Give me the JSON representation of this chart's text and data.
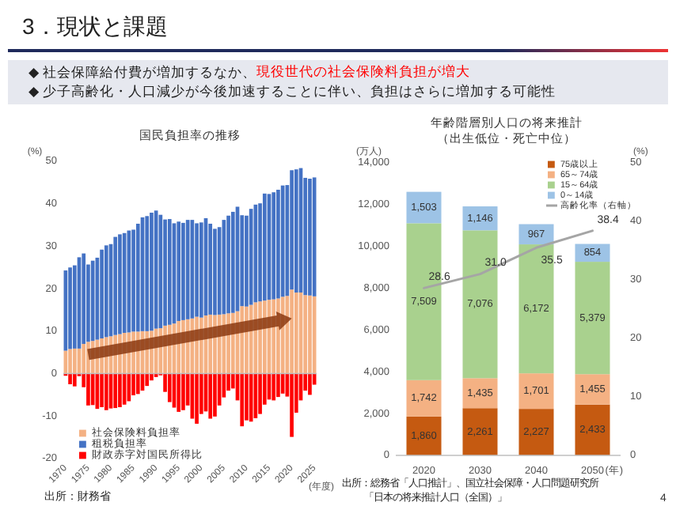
{
  "chart_data": [
    {
      "type": "bar",
      "stacked": true,
      "title": "国民負担率の推移",
      "xlabel": "(年度)",
      "ylabel": "(%)",
      "categories": [
        "1970",
        null,
        null,
        null,
        null,
        "1975",
        null,
        null,
        null,
        null,
        "1980",
        null,
        null,
        null,
        null,
        "1985",
        null,
        null,
        null,
        null,
        "1990",
        null,
        null,
        null,
        null,
        "1995",
        null,
        null,
        null,
        null,
        "2000",
        null,
        null,
        null,
        null,
        "2005",
        null,
        null,
        null,
        null,
        "2010",
        null,
        null,
        null,
        null,
        "2015",
        null,
        null,
        null,
        null,
        "2020",
        null,
        null,
        null,
        null,
        "2025"
      ],
      "series": [
        {
          "name": "社会保険料負担率",
          "color": "#f4b183",
          "values": [
            5.4,
            5.8,
            5.9,
            5.9,
            7.0,
            7.5,
            7.7,
            8.0,
            8.3,
            8.6,
            8.8,
            9.1,
            9.3,
            9.6,
            9.7,
            9.9,
            9.9,
            10.0,
            10.0,
            10.1,
            10.6,
            10.7,
            11.3,
            11.5,
            11.8,
            12.4,
            12.6,
            12.8,
            13.0,
            13.4,
            13.2,
            13.7,
            13.9,
            13.8,
            13.9,
            14.0,
            14.2,
            14.3,
            14.7,
            15.9,
            15.8,
            16.2,
            16.8,
            17.0,
            17.2,
            17.4,
            17.5,
            17.7,
            18.1,
            18.3,
            19.8,
            19.1,
            19.1,
            18.5,
            18.4,
            18.2
          ]
        },
        {
          "name": "租税負担率",
          "color": "#4472c4",
          "values": [
            18.9,
            19.2,
            19.6,
            21.5,
            21.3,
            18.2,
            18.9,
            19.3,
            20.9,
            21.6,
            21.7,
            23.1,
            23.5,
            23.5,
            24.0,
            24.0,
            25.4,
            26.8,
            27.1,
            27.8,
            27.8,
            26.7,
            25.0,
            24.9,
            23.6,
            23.4,
            22.9,
            23.4,
            23.2,
            22.0,
            22.4,
            22.9,
            21.4,
            20.3,
            20.6,
            22.2,
            23.0,
            23.8,
            24.6,
            21.4,
            21.4,
            22.6,
            23.0,
            23.1,
            25.2,
            24.9,
            25.2,
            25.6,
            26.2,
            26.1,
            28.1,
            29.0,
            29.3,
            27.6,
            27.5,
            28.0
          ]
        },
        {
          "name": "財政赤字対国民所得比",
          "color": "#ff0000",
          "values": [
            -0.5,
            -2.5,
            -3.0,
            -0.6,
            -3.2,
            -7.5,
            -7.4,
            -8.3,
            -7.9,
            -8.6,
            -8.2,
            -8.1,
            -7.9,
            -7.3,
            -6.5,
            -5.1,
            -4.8,
            -4.0,
            -2.9,
            -1.6,
            -0.8,
            -0.4,
            -4.3,
            -6.7,
            -8.0,
            -9.0,
            -8.6,
            -7.5,
            -10.6,
            -11.8,
            -9.5,
            -8.9,
            -10.6,
            -10.1,
            -7.5,
            -5.6,
            -4.0,
            -3.5,
            -6.3,
            -12.4,
            -11.0,
            -11.3,
            -10.5,
            -9.5,
            -7.3,
            -6.1,
            -6.3,
            -5.5,
            -4.7,
            -5.4,
            -14.9,
            -9.2,
            -6.3,
            -4.0,
            -5.0,
            -2.6
          ]
        }
      ],
      "ylim": [
        -20,
        50
      ],
      "yticks": [
        -20,
        -10,
        0,
        10,
        20,
        30,
        40,
        50
      ],
      "legend": "bottom left",
      "annotations": [
        "3．現状と課題",
        "◆ 社会保障給付費が増加するなか、",
        "現役世代の社会保険料負担が増大",
        "◆ 少子高齢化・人口減少が今後加速することに伴い、負担はさらに増加する可能性",
        "出所：財務省"
      ]
    },
    {
      "type": "bar",
      "stacked": true,
      "title": "年齢階層別人口の将来推計",
      "subtitle": "（出生低位・死亡中位）",
      "xlabel": "(年)",
      "ylabel": "(万人)",
      "y2label": "(%)",
      "categories": [
        "2020",
        "2030",
        "2040",
        "2050"
      ],
      "series": [
        {
          "name": "75歳以上",
          "color": "#c55a11",
          "values": [
            1860,
            2261,
            2227,
            2433
          ],
          "value_labels": [
            "1,860",
            "2,261",
            "2,227",
            "2,433"
          ]
        },
        {
          "name": "65～74歳",
          "color": "#f4b183",
          "values": [
            1742,
            1435,
            1701,
            1455
          ],
          "value_labels": [
            "1,742",
            "1,435",
            "1,701",
            "1,455"
          ]
        },
        {
          "name": "15～64歳",
          "color": "#a9d18e",
          "values": [
            7509,
            7076,
            6172,
            5379
          ],
          "value_labels": [
            "7,509",
            "7,076",
            "6,172",
            "5,379"
          ]
        },
        {
          "name": "0～14歳",
          "color": "#9dc3e6",
          "values": [
            1503,
            1146,
            967,
            854
          ],
          "value_labels": [
            "1,503",
            "1,146",
            "967",
            "854"
          ]
        },
        {
          "name": "高齢化率（右軸）",
          "type": "line",
          "axis": "y2",
          "color": "#a5a5a5",
          "values": [
            28.6,
            31.0,
            35.5,
            38.4
          ],
          "value_labels": [
            "28.6",
            "31.0",
            "35.5",
            "38.4"
          ]
        }
      ],
      "ylim": [
        0,
        14000
      ],
      "yticks": [
        0,
        {
          "value": 2000,
          "label": "2,000"
        },
        {
          "value": 4000,
          "label": "4,000"
        },
        {
          "value": 6000,
          "label": "6,000"
        },
        {
          "value": 8000,
          "label": "8,000"
        },
        {
          "value": 10000,
          "label": "10,000"
        },
        {
          "value": 12000,
          "label": "12,000"
        },
        {
          "value": 14000,
          "label": "14,000"
        }
      ],
      "y2lim": [
        0,
        50
      ],
      "y2ticks": [
        0,
        10,
        20,
        30,
        40,
        50
      ],
      "legend": "top right",
      "annotations": [
        "出所：総務省「人口推計」、国立社会保障・人口問題研究所",
        "「日本の将来推計人口（全国）」",
        "4"
      ]
    }
  ]
}
